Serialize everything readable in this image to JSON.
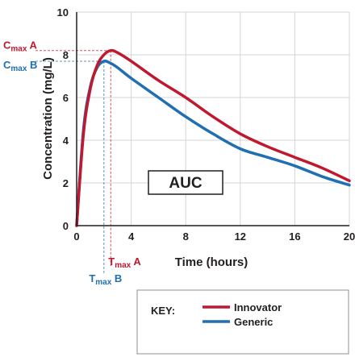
{
  "chart_data": {
    "type": "line",
    "xlabel": "Time (hours)",
    "ylabel": "Concentration (mg/L)",
    "xlim": [
      0,
      20
    ],
    "ylim": [
      0,
      10
    ],
    "xticks": [
      "0",
      "4",
      "8",
      "12",
      "16",
      "20"
    ],
    "yticks": [
      "0",
      "2",
      "4",
      "6",
      "8",
      "10"
    ],
    "grid": true,
    "series": [
      {
        "name": "Innovator",
        "color": "#c0182e",
        "x": [
          0,
          0.5,
          1,
          1.5,
          2,
          2.5,
          3,
          4,
          6,
          8,
          10,
          12,
          14,
          16,
          18,
          20
        ],
        "y": [
          0,
          4.3,
          6.4,
          7.5,
          8.0,
          8.2,
          8.1,
          7.7,
          6.8,
          6.0,
          5.1,
          4.3,
          3.7,
          3.2,
          2.7,
          2.1
        ]
      },
      {
        "name": "Generic",
        "color": "#1f6fb2",
        "x": [
          0,
          0.5,
          1,
          1.5,
          2,
          2.5,
          3,
          4,
          6,
          8,
          10,
          12,
          14,
          16,
          18,
          20
        ],
        "y": [
          0,
          4.5,
          6.5,
          7.4,
          7.7,
          7.6,
          7.4,
          6.9,
          6.0,
          5.1,
          4.3,
          3.6,
          3.2,
          2.8,
          2.3,
          1.9
        ]
      }
    ],
    "annotations": {
      "cmax_a": {
        "main": "C",
        "sub": "max",
        "suffix": " A",
        "color": "#c0182e",
        "y": 8.2
      },
      "cmax_b": {
        "main": "C",
        "sub": "max",
        "suffix": " B",
        "color": "#1f6fb2",
        "y": 7.7
      },
      "tmax_a": {
        "main": "T",
        "sub": "max",
        "suffix": " A",
        "color": "#c0182e",
        "x": 2.5
      },
      "tmax_b": {
        "main": "T",
        "sub": "max",
        "suffix": " B",
        "color": "#1f6fb2",
        "x": 2.0
      },
      "auc_label": "AUC"
    },
    "legend": {
      "title": "KEY:",
      "placement": "bottom",
      "entries": [
        "Innovator",
        "Generic"
      ]
    }
  }
}
